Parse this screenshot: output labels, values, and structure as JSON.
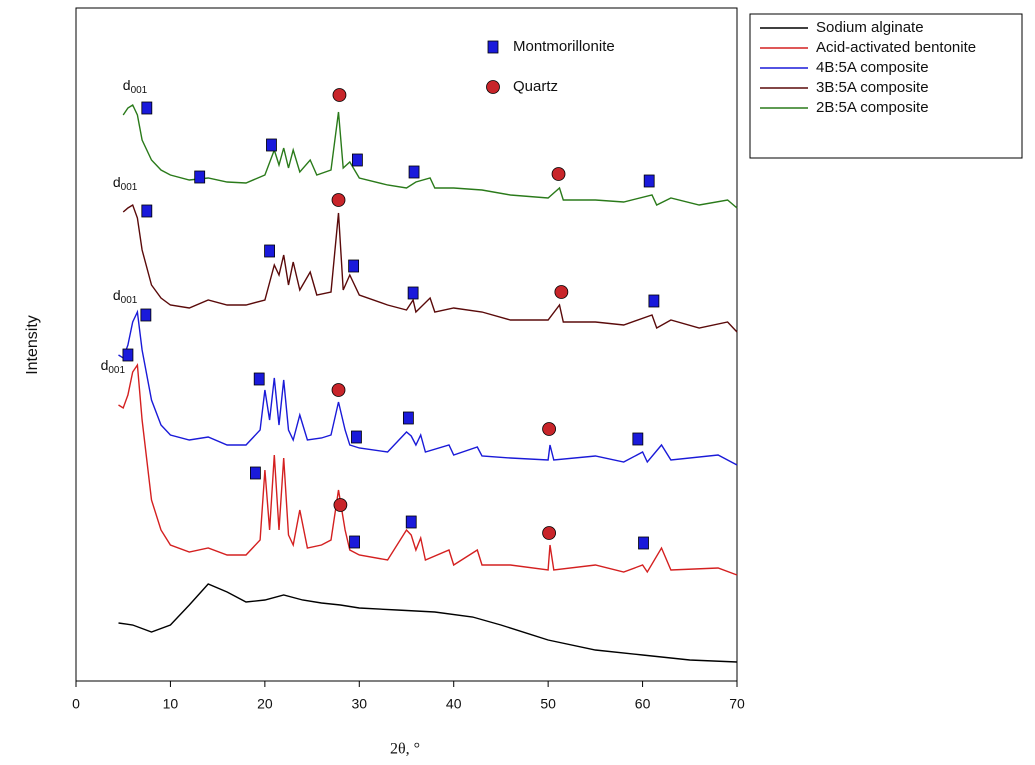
{
  "chart_data": {
    "type": "line",
    "x_label": "2θ, °",
    "y_label": "Intensity",
    "xlim": [
      0,
      70
    ],
    "xticks": [
      0,
      10,
      20,
      30,
      40,
      50,
      60,
      70
    ],
    "ylim": [
      0,
      673
    ],
    "series": [
      {
        "name": "Sodium alginate",
        "color": "#000000",
        "x": [
          4.5,
          6,
          8,
          10,
          12,
          14,
          16,
          18,
          20,
          22,
          24,
          26,
          28,
          30,
          34,
          38,
          42,
          45,
          50,
          55,
          60,
          65,
          70
        ],
        "values": [
          58,
          56,
          49,
          56,
          76,
          97,
          89,
          79,
          81,
          86,
          81,
          78,
          76,
          73,
          71,
          69,
          64,
          56,
          41,
          31,
          26,
          21,
          19
        ]
      },
      {
        "name": "Acid-activated bentonite",
        "color": "#d42020",
        "x": [
          4.5,
          5,
          5.5,
          6,
          6.5,
          7,
          8,
          9,
          10,
          12,
          14,
          16,
          18,
          19.5,
          20,
          20.5,
          21,
          21.5,
          22,
          22.5,
          23,
          23.7,
          24.5,
          26,
          27,
          27.8,
          28.5,
          29,
          30,
          33,
          35,
          35.5,
          36,
          36.5,
          37,
          39.5,
          40,
          42.5,
          43,
          46,
          50,
          50.2,
          50.6,
          55,
          58,
          60,
          60.5,
          62,
          63,
          68,
          70
        ],
        "values": [
          276,
          273,
          286,
          309,
          316,
          261,
          181,
          151,
          136,
          129,
          133,
          126,
          126,
          141,
          211,
          151,
          226,
          151,
          223,
          146,
          136,
          171,
          133,
          136,
          141,
          191,
          151,
          131,
          126,
          121,
          151,
          146,
          131,
          143,
          121,
          131,
          116,
          131,
          116,
          116,
          111,
          136,
          111,
          116,
          109,
          116,
          109,
          133,
          111,
          113,
          106
        ]
      },
      {
        "name": "4B:5A composite",
        "color": "#1a1ad8",
        "x": [
          4.5,
          5,
          5.5,
          6,
          6.5,
          7,
          8,
          9,
          10,
          12,
          14,
          16,
          18,
          19.5,
          20,
          20.5,
          21,
          21.5,
          22,
          22.5,
          23,
          23.7,
          24.5,
          26,
          27,
          27.8,
          28.5,
          29,
          30,
          33,
          35,
          35.5,
          36,
          36.5,
          37,
          39.5,
          40,
          42.5,
          43,
          46,
          50,
          50.2,
          50.6,
          55,
          58,
          60,
          60.5,
          62,
          63,
          68,
          70
        ],
        "values": [
          326,
          323,
          336,
          359,
          369,
          331,
          281,
          256,
          246,
          241,
          244,
          236,
          236,
          251,
          291,
          261,
          303,
          256,
          301,
          251,
          241,
          266,
          241,
          243,
          246,
          279,
          251,
          236,
          233,
          229,
          249,
          245,
          236,
          246,
          229,
          236,
          226,
          234,
          225,
          223,
          221,
          236,
          221,
          225,
          219,
          229,
          219,
          236,
          221,
          226,
          216
        ]
      },
      {
        "name": "3B:5A composite",
        "color": "#5a0a0a",
        "x": [
          5,
          5.5,
          6,
          6.5,
          7,
          8,
          9,
          10,
          12,
          14,
          16,
          18,
          20,
          21,
          21.5,
          22,
          22.5,
          23,
          23.7,
          24.8,
          25.5,
          27,
          27.8,
          28.3,
          29,
          30,
          33,
          35,
          35.7,
          36,
          37.5,
          38,
          40,
          43,
          46,
          50,
          51.2,
          51.6,
          55,
          58,
          61,
          61.5,
          63,
          66,
          69,
          70
        ],
        "values": [
          469,
          473,
          476,
          463,
          431,
          396,
          383,
          376,
          373,
          381,
          376,
          376,
          381,
          416,
          406,
          426,
          396,
          419,
          391,
          409,
          386,
          389,
          468,
          391,
          406,
          386,
          376,
          371,
          381,
          369,
          383,
          369,
          373,
          369,
          361,
          361,
          376,
          359,
          359,
          356,
          366,
          353,
          361,
          353,
          359,
          349
        ]
      },
      {
        "name": "2B:5A composite",
        "color": "#2a7a1a",
        "x": [
          5,
          5.5,
          6,
          6.5,
          7,
          8,
          9,
          10,
          12,
          14,
          16,
          18,
          20,
          21,
          21.5,
          22,
          22.5,
          23,
          23.7,
          24.8,
          25.5,
          27,
          27.8,
          28.3,
          29,
          30,
          33,
          35,
          36,
          37.5,
          38,
          40,
          43,
          46,
          50,
          51.2,
          51.6,
          55,
          58,
          61,
          61.5,
          63,
          66,
          69,
          70
        ],
        "values": [
          566,
          573,
          576,
          566,
          541,
          521,
          511,
          506,
          501,
          503,
          499,
          498,
          506,
          531,
          516,
          533,
          513,
          531,
          509,
          521,
          506,
          511,
          569,
          513,
          519,
          503,
          496,
          493,
          499,
          503,
          493,
          493,
          491,
          486,
          483,
          493,
          481,
          481,
          479,
          486,
          476,
          483,
          476,
          481,
          473
        ]
      }
    ],
    "markers": [
      {
        "name": "Montmorillonite",
        "shape": "square",
        "color": "#1a1adb",
        "x": [
          7.5,
          13.1,
          20.7,
          29.8,
          35.8,
          60.7,
          7.5,
          20.5,
          29.4,
          35.7,
          61.2,
          7.4,
          19.4,
          29.7,
          35.2,
          59.5,
          5.5,
          19.0,
          29.5,
          35.5,
          60.1
        ],
        "y": [
          573,
          504,
          536,
          521,
          509,
          500,
          470,
          430,
          415,
          388,
          380,
          366,
          302,
          244,
          263,
          242,
          326,
          208,
          139,
          159,
          138
        ]
      },
      {
        "name": "Quartz",
        "shape": "circle",
        "color": "#c8252a",
        "x": [
          27.9,
          51.1,
          27.8,
          51.4,
          27.8,
          50.1,
          28.0,
          50.1
        ],
        "y": [
          586,
          507,
          481,
          389,
          291,
          252,
          176,
          148
        ]
      }
    ],
    "annotations": [
      {
        "text": "d",
        "sub": "001",
        "x": 6.25,
        "y": 595
      },
      {
        "text": "d",
        "sub": "001",
        "x": 5.2,
        "y": 498
      },
      {
        "text": "d",
        "sub": "001",
        "x": 5.2,
        "y": 385
      },
      {
        "text": "d",
        "sub": "001",
        "x": 3.9,
        "y": 315
      }
    ]
  }
}
